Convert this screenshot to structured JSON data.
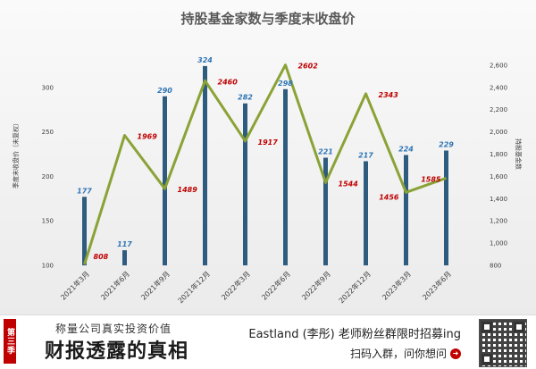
{
  "chart_data": {
    "type": "bar+line",
    "title": "持股基金家数与季度末收盘价",
    "categories": [
      "2021年3月",
      "2021年6月",
      "2021年9月",
      "2021年12月",
      "2022年3月",
      "2022年6月",
      "2022年9月",
      "2022年12月",
      "2023年3月",
      "2023年6月"
    ],
    "series": [
      {
        "name": "季度末收盘价",
        "type": "bar",
        "axis": "left",
        "color": "#2e5c7f",
        "values": [
          177,
          117,
          290,
          324,
          282,
          298,
          221,
          217,
          224,
          229
        ]
      },
      {
        "name": "持股基金数",
        "type": "line",
        "axis": "right",
        "color": "#8aa236",
        "values": [
          808,
          1969,
          1489,
          2460,
          1917,
          2602,
          1544,
          2343,
          1456,
          1585
        ]
      }
    ],
    "ylabel": "季度末收盘价（未复权）",
    "y2label": "持股基金数",
    "ylim": [
      100,
      350
    ],
    "y_ticks": [
      100,
      150,
      200,
      250,
      300
    ],
    "y2lim": [
      800,
      2800
    ],
    "y2_ticks": [
      800,
      1000,
      1200,
      1400,
      1600,
      1800,
      2000,
      2200,
      2400,
      2600
    ],
    "y2_tick_labels": [
      "800",
      "1,000",
      "1,200",
      "1,400",
      "1,600",
      "1,800",
      "2,000",
      "2,200",
      "2,400",
      "2,600"
    ],
    "grid": false,
    "legend": "none"
  },
  "banner": {
    "badge": "第三季",
    "sub": "称量公司真实投资价值",
    "main": "财报透露的真相",
    "right_line1": "Eastland (李彤) 老师粉丝群限时招募ing",
    "right_line2": "扫码入群，问你想问",
    "arrow_icon": "arrow-right-circle-icon",
    "qr_icon": "qr-code-icon"
  }
}
